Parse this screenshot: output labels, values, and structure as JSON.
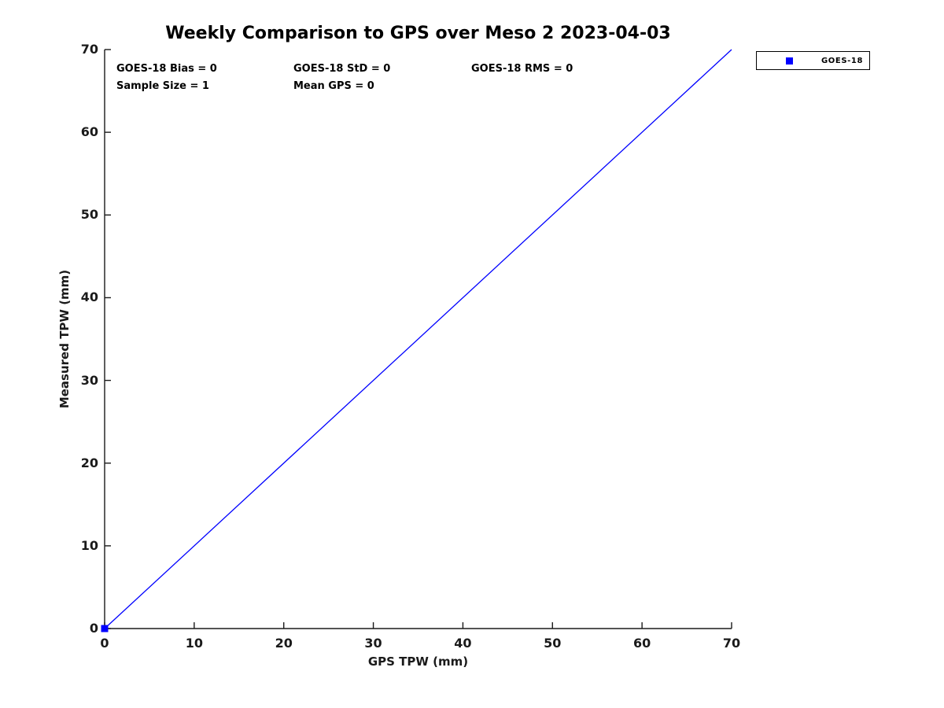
{
  "chart_data": {
    "type": "scatter",
    "title": "Weekly Comparison to GPS over Meso 2 2023-04-03",
    "xlabel": "GPS TPW (mm)",
    "ylabel": "Measured TPW (mm)",
    "xlim": [
      0,
      70
    ],
    "ylim": [
      0,
      70
    ],
    "xticks": [
      0,
      10,
      20,
      30,
      40,
      50,
      60,
      70
    ],
    "yticks": [
      0,
      10,
      20,
      30,
      40,
      50,
      60,
      70
    ],
    "grid": false,
    "axis_color": "#1a1a1a",
    "annotations": {
      "bias": "GOES-18 Bias = 0",
      "std": "GOES-18 StD = 0",
      "rms": "GOES-18 RMS = 0",
      "sample_size": "Sample Size = 1",
      "mean_gps": "Mean GPS = 0"
    },
    "legend": {
      "position": "top-right",
      "items": [
        {
          "label": "GOES-18",
          "marker": "square",
          "color": "#0000ff"
        }
      ]
    },
    "series": [
      {
        "name": "GOES-18",
        "kind": "scatter",
        "marker": "square",
        "marker_size": 9,
        "color": "#0000ff",
        "points": [
          [
            0,
            0
          ]
        ]
      },
      {
        "name": "identity-line",
        "kind": "line",
        "color": "#0000ff",
        "width": 1.3,
        "points": [
          [
            0,
            0
          ],
          [
            70,
            70
          ]
        ]
      }
    ]
  }
}
